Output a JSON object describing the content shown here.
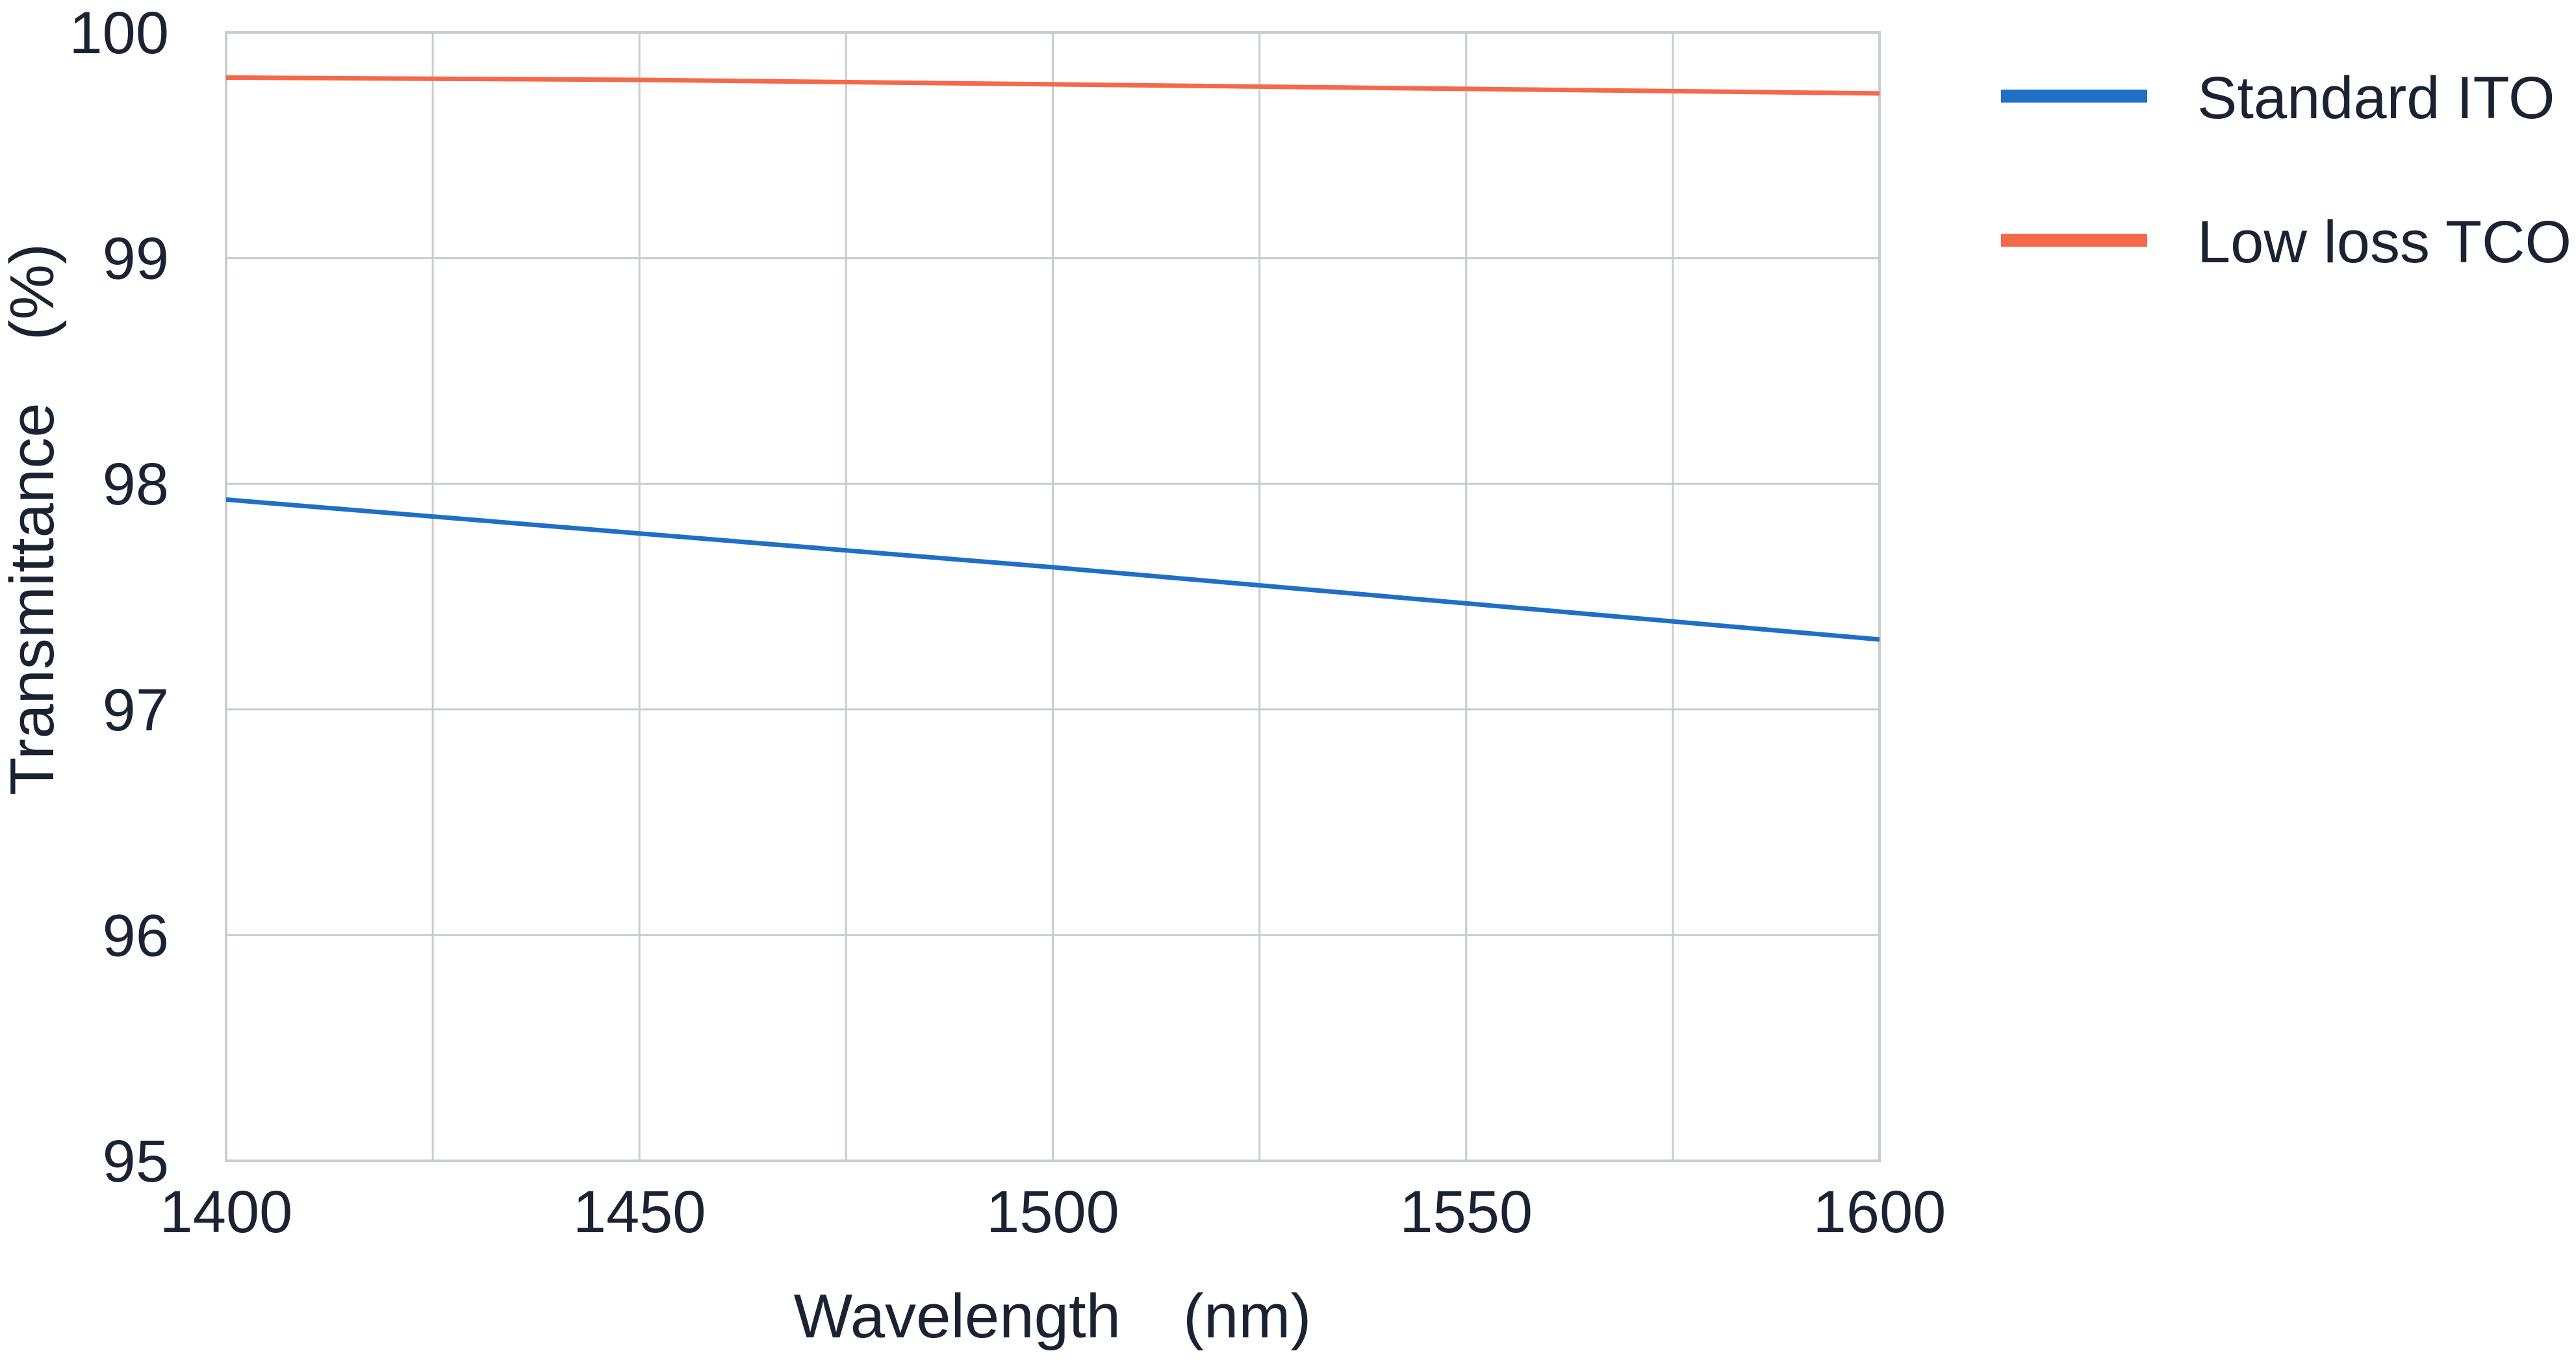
{
  "colors": {
    "grid": "#c8cdd0",
    "frame": "#c8cdd0",
    "text": "#1b2333",
    "series_standard": "#1f6fc6",
    "series_lowloss": "#f4694a"
  },
  "chart_data": {
    "type": "line",
    "title": "",
    "xlabel": "Wavelength (nm)",
    "ylabel": "Transmittance (%)",
    "xlim": [
      1400,
      1600
    ],
    "ylim": [
      95,
      100
    ],
    "xticks": [
      1400,
      1450,
      1500,
      1550,
      1600
    ],
    "xtick_labels": [
      "1400",
      "1450",
      "1500",
      "1550",
      "1600"
    ],
    "yticks": [
      95,
      96,
      97,
      98,
      99,
      100
    ],
    "ytick_labels": [
      "95",
      "96",
      "97",
      "98",
      "99",
      "100"
    ],
    "grid": true,
    "legend_position": "top-right, outside plot",
    "series": [
      {
        "name": "Standard ITO",
        "color": "#1f6fc6",
        "x": [
          1400,
          1450,
          1500,
          1550,
          1600
        ],
        "y": [
          97.93,
          97.78,
          97.63,
          97.47,
          97.31
        ]
      },
      {
        "name": "Low loss TCO",
        "color": "#f4694a",
        "x": [
          1400,
          1450,
          1500,
          1550,
          1600
        ],
        "y": [
          99.8,
          99.79,
          99.77,
          99.75,
          99.73
        ]
      }
    ]
  }
}
